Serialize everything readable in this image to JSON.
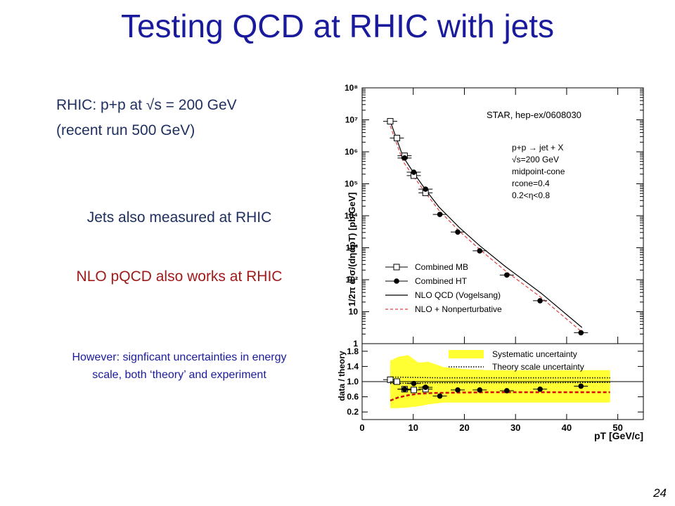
{
  "slide": {
    "title": "Testing QCD at RHIC with jets",
    "line1": "RHIC: p+p at √s = 200 GeV",
    "line2": "(recent run 500 GeV)",
    "jets": "Jets also measured at RHIC",
    "nlo": "NLO pQCD also works at RHIC",
    "however": "However: signficant uncertainties in energy scale, both ‘theory’ and experiment",
    "page": "24"
  },
  "chart_data": [
    {
      "type": "scatter",
      "xlim": [
        0,
        55
      ],
      "ylim": [
        1,
        100000000
      ],
      "yscale": "log",
      "ylabel": "1/2π d²σ/(dηdpT) [pb/GeV]",
      "x_ticks": [
        0,
        10,
        20,
        30,
        40,
        50
      ],
      "y_ticks": [
        "1",
        "10",
        "10²",
        "10³",
        "10⁴",
        "10⁵",
        "10⁶",
        "10⁷",
        "10⁸"
      ],
      "source": "STAR, hep-ex/0608030",
      "legend_position": "bottom-left",
      "annotations": [
        "p+p → jet + X",
        "√s=200 GeV",
        "midpoint-cone",
        "rcone=0.4",
        "0.2<η<0.8"
      ],
      "series": [
        {
          "name": "Combined MB",
          "marker": "open-square",
          "x": [
            5.5,
            6.8,
            8.3,
            10.1,
            12.4
          ],
          "y": [
            9000000,
            2700000,
            750000,
            180000,
            52000
          ]
        },
        {
          "name": "Combined HT",
          "marker": "filled-circle",
          "x": [
            8.3,
            10.1,
            12.4,
            15.2,
            18.7,
            23.0,
            28.3,
            34.8,
            42.8
          ],
          "y": [
            640000,
            230000,
            68000,
            11000,
            3100,
            800,
            140,
            22,
            2.2
          ]
        },
        {
          "name": "NLO QCD (Vogelsang)",
          "style": "solid",
          "x": [
            5.5,
            8,
            10,
            12.5,
            15,
            19,
            23,
            28,
            35,
            43
          ],
          "y": [
            9000000,
            700000,
            230000,
            62000,
            19000,
            4300,
            1150,
            260,
            38,
            3.2
          ]
        },
        {
          "name": "NLO + Nonperturbative",
          "style": "dashed",
          "x": [
            5.5,
            8,
            10,
            12.5,
            15,
            19,
            23,
            28,
            35,
            43
          ],
          "y": [
            6500000,
            500000,
            175000,
            50000,
            15000,
            3300,
            880,
            190,
            28,
            2.3
          ]
        }
      ]
    },
    {
      "type": "scatter",
      "xlim": [
        0,
        55
      ],
      "ylim": [
        0,
        2
      ],
      "xlabel": "pT [GeV/c]",
      "ylabel": "data / theory",
      "x_ticks": [
        0,
        10,
        20,
        30,
        40,
        50
      ],
      "y_ticks": [
        0.2,
        0.6,
        1.0,
        1.4,
        1.8
      ],
      "legend_position": "top-right",
      "series": [
        {
          "name": "Systematic uncertainty",
          "style": "yellow-band",
          "x": [
            5.5,
            7,
            9,
            11,
            13,
            16,
            20,
            25,
            30,
            35,
            40,
            45,
            48.5
          ],
          "upper": [
            1.55,
            1.65,
            1.7,
            1.5,
            1.52,
            1.38,
            1.33,
            1.3,
            1.3,
            1.3,
            1.3,
            1.3,
            1.3
          ],
          "lower": [
            0.3,
            0.3,
            0.32,
            0.35,
            0.4,
            0.45,
            0.45,
            0.45,
            0.45,
            0.45,
            0.45,
            0.45,
            0.45
          ]
        },
        {
          "name": "Theory scale uncertainty",
          "style": "dotted",
          "x": [
            5.5,
            15,
            25,
            35,
            48.5
          ],
          "upper": [
            1.12,
            1.1,
            1.1,
            1.1,
            1.1
          ],
          "lower": [
            0.95,
            0.97,
            0.97,
            0.97,
            0.98
          ]
        },
        {
          "name": "NLO + Nonperturbative",
          "style": "dashed",
          "x": [
            5.5,
            7,
            9,
            11,
            14,
            18,
            25,
            35,
            48.5
          ],
          "y": [
            0.5,
            0.58,
            0.64,
            0.68,
            0.7,
            0.71,
            0.72,
            0.72,
            0.72
          ]
        },
        {
          "name": "Combined MB",
          "marker": "open-square",
          "x": [
            5.5,
            6.8,
            8.3,
            10.1,
            12.4
          ],
          "y": [
            1.05,
            1.0,
            0.8,
            0.78,
            0.8
          ]
        },
        {
          "name": "Combined HT",
          "marker": "filled-circle",
          "x": [
            8.3,
            10.1,
            12.4,
            15.2,
            18.7,
            23.0,
            28.3,
            34.8,
            42.8
          ],
          "y": [
            0.8,
            0.95,
            0.85,
            0.62,
            0.78,
            0.78,
            0.76,
            0.8,
            0.88
          ]
        }
      ]
    }
  ]
}
